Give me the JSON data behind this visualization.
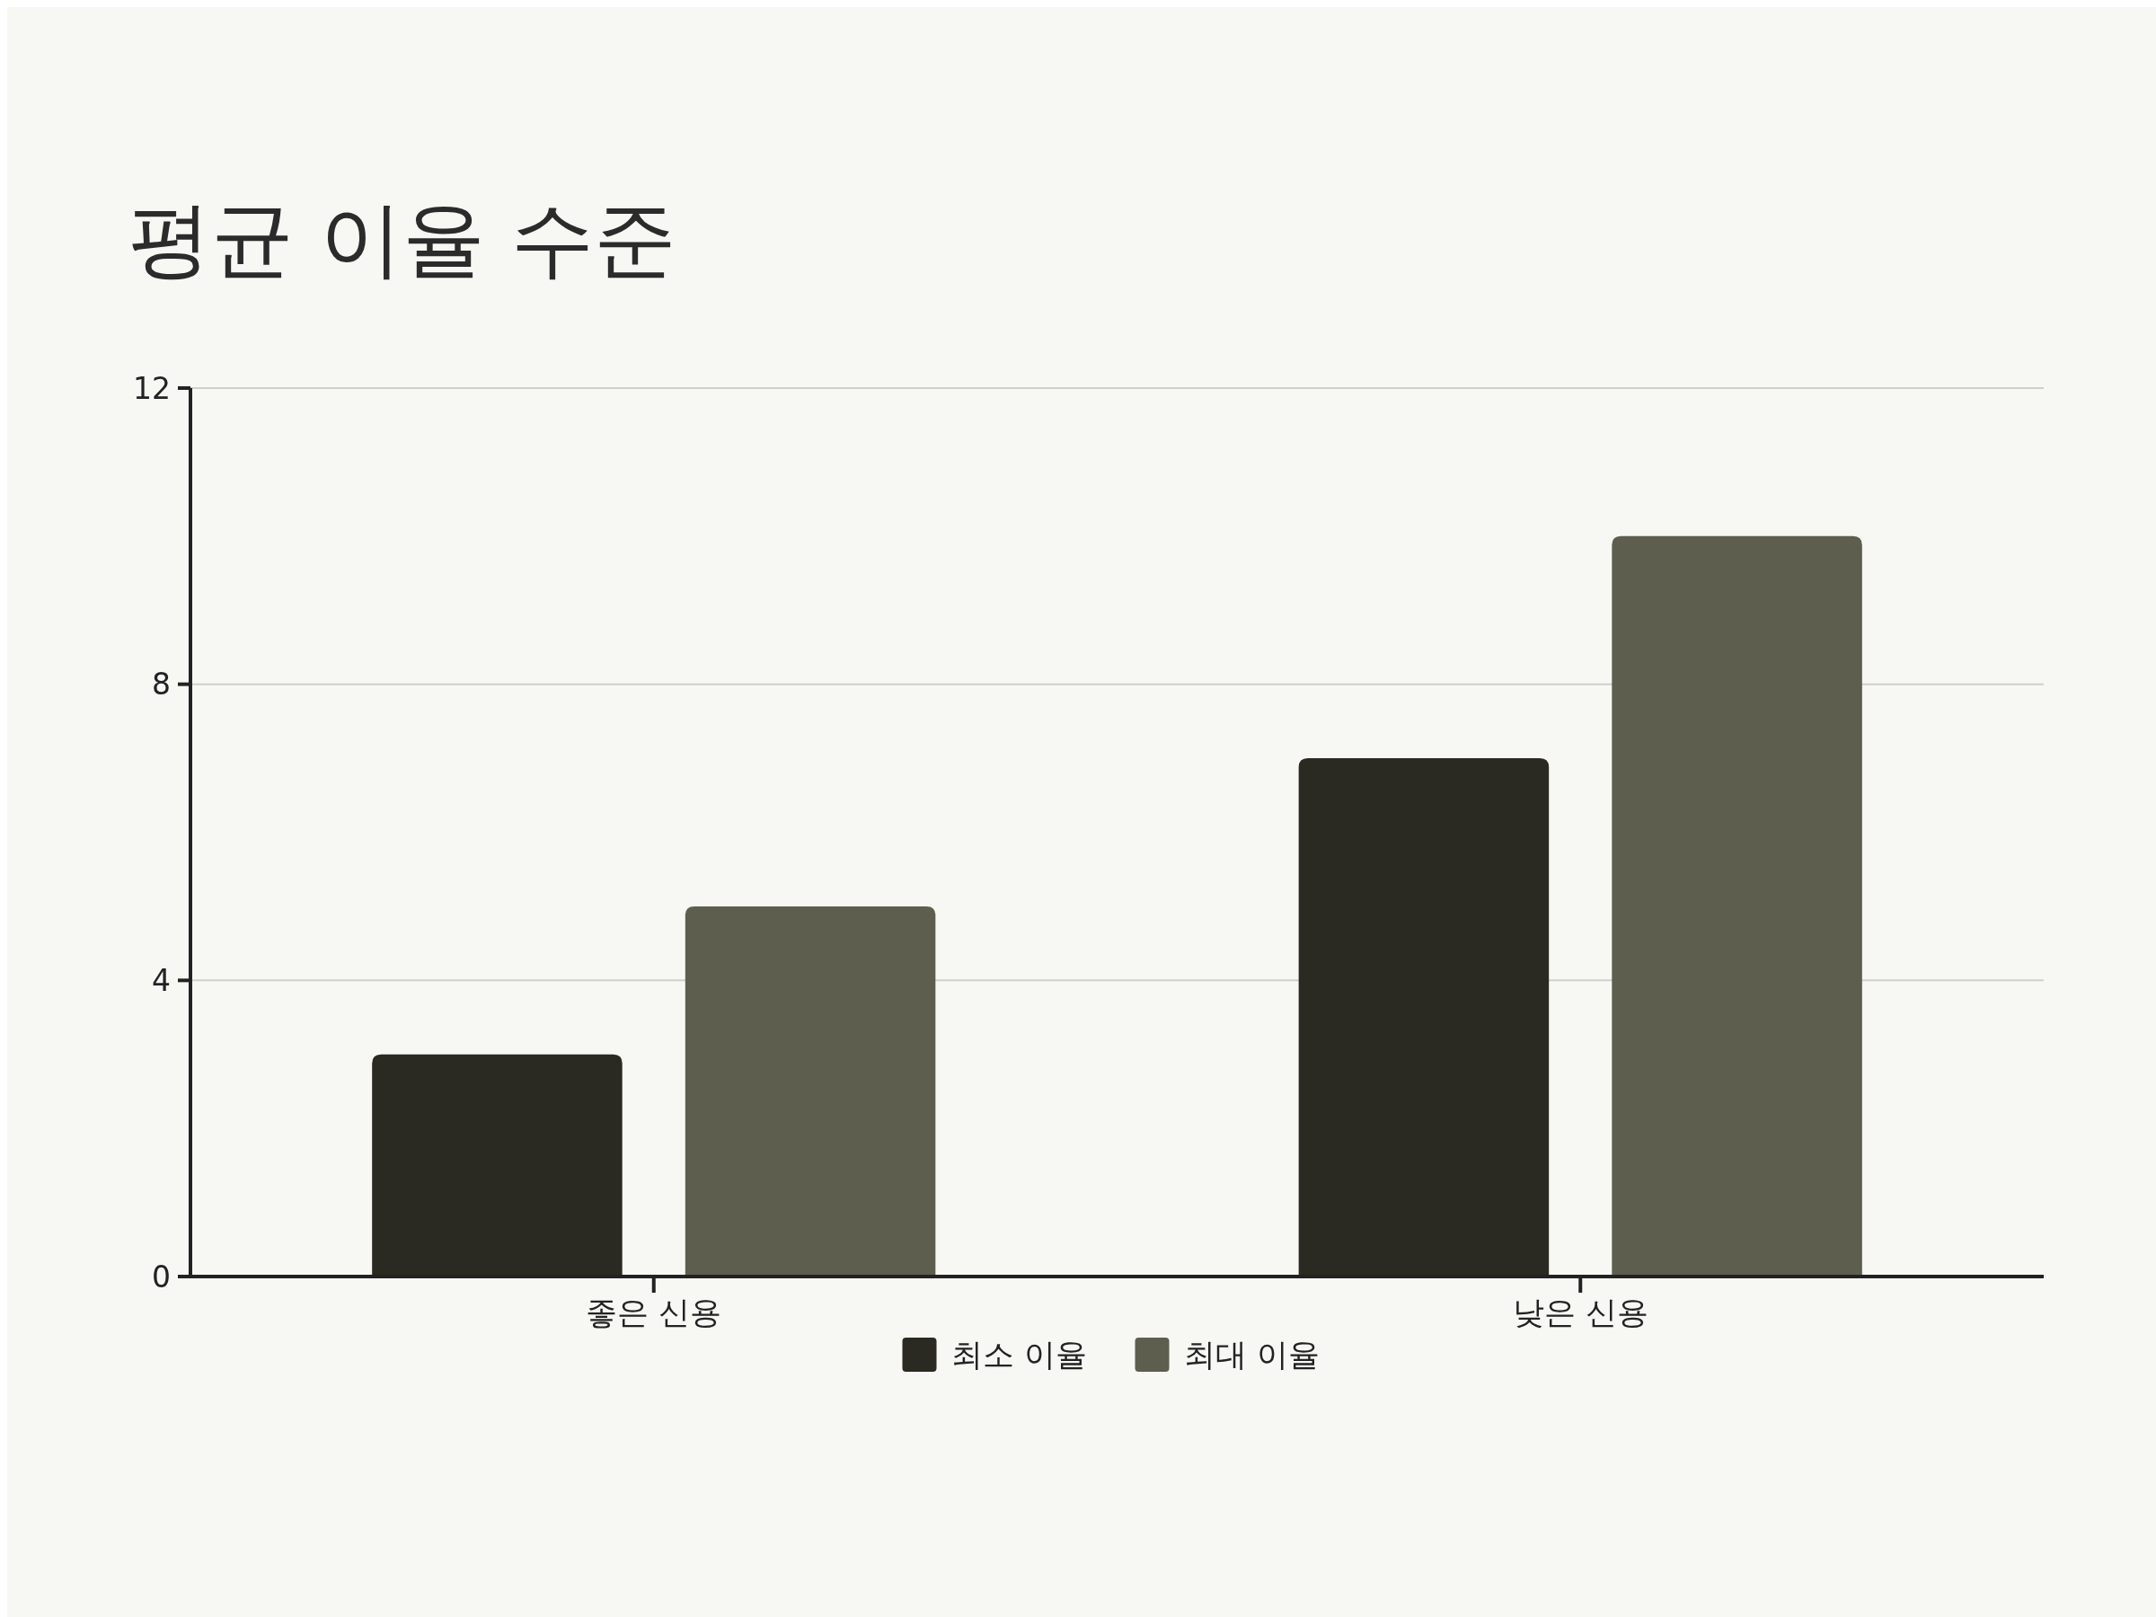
{
  "chart_data": {
    "type": "bar",
    "title": "평균 이율 수준",
    "categories": [
      "좋은 신용",
      "낮은 신용"
    ],
    "series": [
      {
        "name": "최소 이율",
        "color": "#2a2a22",
        "values": [
          3,
          7
        ]
      },
      {
        "name": "최대 이율",
        "color": "#5e5e4e",
        "values": [
          5,
          10
        ]
      }
    ],
    "ylim": [
      0,
      12
    ],
    "yticks": [
      0,
      4,
      8,
      12
    ],
    "grid": "y",
    "legend": "bottom"
  }
}
